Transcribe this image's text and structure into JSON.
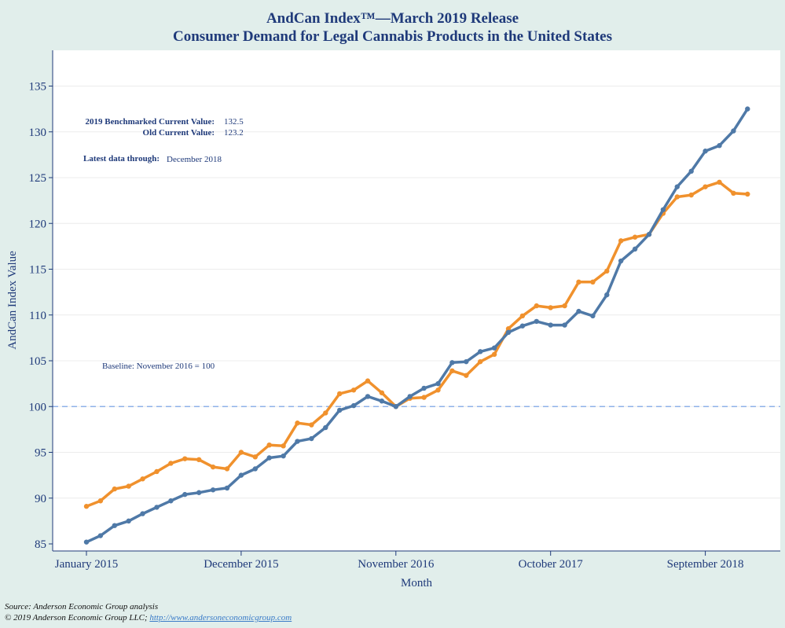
{
  "chart_data": {
    "type": "line",
    "title_line1": "AndCan Index™—March 2019 Release",
    "title_line2": "Consumer Demand for Legal Cannabis Products in the United States",
    "xlabel": "Month",
    "ylabel": "AndCan Index Value",
    "ylim": [
      85,
      139
    ],
    "yticks": [
      85,
      90,
      95,
      100,
      105,
      110,
      115,
      120,
      125,
      130,
      135
    ],
    "x_tick_labels": [
      {
        "index": 0,
        "label": "January 2015"
      },
      {
        "index": 11,
        "label": "December 2015"
      },
      {
        "index": 22,
        "label": "November 2016"
      },
      {
        "index": 33,
        "label": "October 2017"
      },
      {
        "index": 44,
        "label": "September 2018"
      }
    ],
    "baseline": {
      "value": 100,
      "label": "Baseline: November 2016 = 100"
    },
    "series": [
      {
        "name": "2019 Benchmarked",
        "color": "#4f79a7",
        "values": [
          85.2,
          85.9,
          87.0,
          87.5,
          88.3,
          89.0,
          89.7,
          90.4,
          90.6,
          90.9,
          91.1,
          92.5,
          93.2,
          94.4,
          94.6,
          96.2,
          96.5,
          97.7,
          99.6,
          100.1,
          101.1,
          100.6,
          100.0,
          101.1,
          102.0,
          102.5,
          104.8,
          104.9,
          106.0,
          106.4,
          108.1,
          108.8,
          109.3,
          108.9,
          108.9,
          110.4,
          109.9,
          112.2,
          115.9,
          117.2,
          118.8,
          121.5,
          124.0,
          125.7,
          127.9,
          128.5,
          130.1,
          132.5
        ]
      },
      {
        "name": "Old",
        "color": "#f0912d",
        "values": [
          89.1,
          89.7,
          91.0,
          91.3,
          92.1,
          92.9,
          93.8,
          94.3,
          94.2,
          93.4,
          93.2,
          95.0,
          94.5,
          95.8,
          95.7,
          98.2,
          98.0,
          99.3,
          101.4,
          101.8,
          102.8,
          101.5,
          100.0,
          100.9,
          101.0,
          101.8,
          103.9,
          103.4,
          104.9,
          105.7,
          108.5,
          109.9,
          111.0,
          110.8,
          111.0,
          113.6,
          113.6,
          114.8,
          118.1,
          118.5,
          118.8,
          121.1,
          122.9,
          123.1,
          124.0,
          124.5,
          123.3,
          123.2
        ]
      }
    ]
  },
  "annotations": {
    "benchmarked_label": "2019 Benchmarked Current Value:",
    "benchmarked_value": "132.5",
    "old_label": "Old Current Value:",
    "old_value": "123.2",
    "latest_label": "Latest data through:",
    "latest_value": "December 2018"
  },
  "footer": {
    "source": "Source: Anderson Economic Group analysis",
    "copyright": "© 2019 Anderson Economic Group LLC; ",
    "link": "http://www.andersoneconomicgroup.com"
  },
  "colors": {
    "background": "#e1eeeb",
    "plot_background": "#ffffff",
    "title": "#1f3a7a",
    "baseline": "#8fb2e8"
  }
}
